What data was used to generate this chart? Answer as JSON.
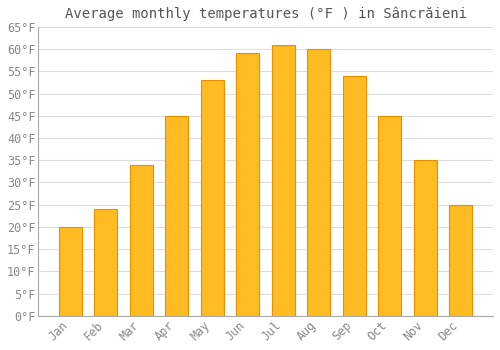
{
  "title": "Average monthly temperatures (°F ) in Sâncrăieni",
  "months": [
    "Jan",
    "Feb",
    "Mar",
    "Apr",
    "May",
    "Jun",
    "Jul",
    "Aug",
    "Sep",
    "Oct",
    "Nov",
    "Dec"
  ],
  "values": [
    20,
    24,
    34,
    45,
    53,
    59,
    61,
    60,
    54,
    45,
    35,
    25
  ],
  "bar_color": "#FFBB22",
  "bar_edge_color": "#E89000",
  "background_color": "#FFFFFF",
  "grid_color": "#DDDDDD",
  "text_color": "#888888",
  "spine_color": "#AAAAAA",
  "ylim": [
    0,
    65
  ],
  "yticks": [
    0,
    5,
    10,
    15,
    20,
    25,
    30,
    35,
    40,
    45,
    50,
    55,
    60,
    65
  ],
  "title_fontsize": 10,
  "tick_fontsize": 8.5
}
